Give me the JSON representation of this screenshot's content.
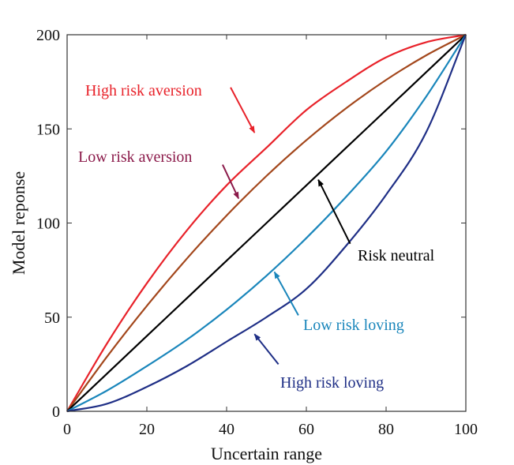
{
  "chart_data": {
    "type": "line",
    "title": "",
    "xlabel": "Uncertain range",
    "ylabel": "Model reponse",
    "xlim": [
      0,
      100
    ],
    "ylim": [
      0,
      200
    ],
    "xticks": [
      0,
      20,
      40,
      60,
      80,
      100
    ],
    "yticks": [
      0,
      50,
      100,
      150,
      200
    ],
    "grid": false,
    "x": [
      0,
      10,
      20,
      30,
      40,
      50,
      60,
      70,
      80,
      90,
      100
    ],
    "series": [
      {
        "name": "High risk aversion",
        "color": "#e8222a",
        "values": [
          0,
          36,
          68,
          96,
          120,
          140,
          160,
          175,
          188,
          196,
          200
        ]
      },
      {
        "name": "Low risk aversion",
        "color": "#a3471c",
        "values": [
          0,
          29,
          56,
          81,
          104,
          125,
          144,
          161,
          176,
          189,
          200
        ]
      },
      {
        "name": "Risk neutral",
        "color": "#000000",
        "values": [
          0,
          20,
          40,
          60,
          80,
          100,
          120,
          140,
          160,
          180,
          200
        ]
      },
      {
        "name": "Low risk loving",
        "color": "#1a86bb",
        "values": [
          0,
          11,
          24,
          38,
          54,
          72,
          92,
          114,
          138,
          167,
          200
        ]
      },
      {
        "name": "High risk loving",
        "color": "#1f2f86",
        "values": [
          0,
          4,
          13,
          24,
          37,
          50,
          65,
          88,
          115,
          148,
          200
        ]
      }
    ],
    "annotations": [
      {
        "text": "High risk aversion",
        "color": "#e8222a",
        "arrow_from": [
          41,
          172
        ],
        "arrow_to": [
          47,
          148
        ]
      },
      {
        "text": "Low risk aversion",
        "color": "#8b1a4a",
        "arrow_from": [
          39,
          131
        ],
        "arrow_to": [
          43,
          113
        ]
      },
      {
        "text": "Risk neutral",
        "color": "#000000",
        "arrow_from": [
          71,
          89
        ],
        "arrow_to": [
          63,
          123
        ]
      },
      {
        "text": "Low risk loving",
        "color": "#1a86bb",
        "arrow_from": [
          58,
          51
        ],
        "arrow_to": [
          52,
          74
        ]
      },
      {
        "text": "High risk loving",
        "color": "#1f2f86",
        "arrow_from": [
          53,
          25
        ],
        "arrow_to": [
          47,
          41
        ]
      }
    ]
  }
}
